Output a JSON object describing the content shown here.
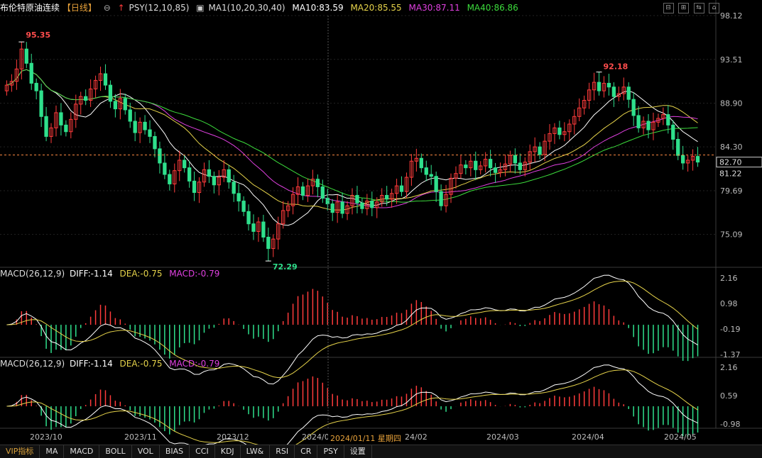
{
  "header": {
    "name": "布伦特原油连续",
    "period": "【日线】",
    "psy": "PSY(12,10,85)",
    "ma_param": "MA1(10,20,30,40)",
    "ma10": "MA10:83.59",
    "ma20": "MA20:85.55",
    "ma30": "MA30:87.11",
    "ma40": "MA40:86.86"
  },
  "macd_panels": [
    {
      "title": "MACD(26,12,9)",
      "diff": "DIFF:-1.14",
      "dea": "DEA:-0.75",
      "macd": "MACD:-0.79",
      "ticks": [
        "2.16",
        "0.98",
        "-0.19",
        "-1.37"
      ]
    },
    {
      "title": "MACD(26,12,9)",
      "diff": "DIFF:-1.14",
      "dea": "DEA:-0.75",
      "macd": "MACD:-0.79",
      "ticks": [
        "2.16",
        "0.59",
        "-0.98"
      ]
    }
  ],
  "xaxis_labels": [
    "2023/10",
    "2023/11",
    "2023/12",
    "2024/0",
    "24/02",
    "2024/03",
    "2024/04",
    "2024/05"
  ],
  "crosshair_label": "2024/01/11 星期四",
  "tabs": [
    "VIP指标",
    "MA",
    "MACD",
    "BOLL",
    "VOL",
    "BIAS",
    "CCI",
    "KDJ",
    "LW&",
    "RSI",
    "CR",
    "PSY",
    "设置"
  ],
  "controls": [
    "⊟",
    "⊞",
    "⇆",
    "⌂"
  ],
  "colors": {
    "up": "#ff3b3b",
    "down": "#2fe08c",
    "ma10": "#ffffff",
    "ma20": "#e6d34a",
    "ma30": "#e040e0",
    "ma40": "#3cdc3c",
    "dashed": "#ff8c42"
  },
  "chart_data": {
    "type": "candlestick",
    "ylim": [
      72.0,
      98.12
    ],
    "y_ticks": [
      "98.12",
      "93.51",
      "88.90",
      "84.30",
      "79.69",
      "75.09"
    ],
    "price_labels": {
      "current": "82.70",
      "other": "81.22"
    },
    "high": {
      "label": "95.35",
      "value": 95.35
    },
    "low": {
      "label": "72.29",
      "value": 72.29
    },
    "high2": {
      "label": "92.18",
      "value": 92.18
    },
    "closes": [
      90.8,
      91.2,
      92.5,
      94.6,
      93.1,
      91.0,
      90.2,
      87.5,
      85.4,
      86.3,
      87.9,
      86.6,
      85.9,
      87.2,
      88.8,
      89.6,
      89.2,
      90.4,
      91.3,
      92.0,
      90.8,
      89.1,
      88.3,
      89.4,
      88.2,
      87.0,
      85.8,
      86.9,
      86.1,
      85.4,
      84.1,
      82.6,
      81.4,
      80.4,
      81.8,
      82.9,
      82.1,
      80.7,
      79.5,
      80.6,
      81.9,
      81.2,
      80.3,
      81.1,
      81.9,
      80.6,
      79.4,
      78.6,
      77.5,
      76.2,
      75.4,
      76.4,
      74.8,
      73.6,
      74.6,
      76.2,
      77.6,
      78.1,
      79.3,
      80.1,
      79.2,
      80.2,
      80.9,
      80.1,
      78.9,
      78.3,
      77.4,
      78.5,
      77.3,
      78.1,
      79.2,
      78.4,
      77.8,
      78.6,
      77.9,
      78.5,
      79.2,
      78.8,
      79.4,
      80.2,
      79.6,
      81.1,
      82.8,
      83.1,
      82.1,
      81.4,
      81.2,
      79.6,
      78.1,
      79.3,
      81.0,
      81.5,
      82.4,
      82.1,
      82.8,
      81.9,
      82.3,
      83.0,
      82.1,
      81.6,
      81.9,
      82.5,
      83.4,
      82.6,
      81.9,
      82.7,
      83.8,
      84.3,
      83.5,
      84.9,
      85.7,
      86.3,
      85.6,
      85.9,
      86.7,
      87.5,
      88.4,
      89.2,
      90.3,
      91.1,
      90.2,
      91.0,
      90.6,
      89.6,
      89.9,
      90.6,
      89.3,
      87.6,
      86.3,
      87.0,
      86.1,
      86.9,
      87.3,
      87.7,
      86.6,
      85.1,
      83.4,
      82.6,
      82.9,
      83.3,
      82.7
    ],
    "ma": [
      {
        "name": "MA10",
        "value": 83.59
      },
      {
        "name": "MA20",
        "value": 85.55
      },
      {
        "name": "MA30",
        "value": 87.11
      },
      {
        "name": "MA40",
        "value": 86.86
      }
    ]
  }
}
